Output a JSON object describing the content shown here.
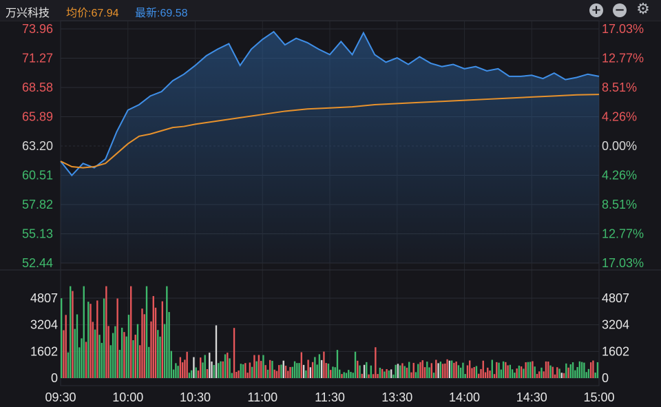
{
  "header": {
    "stock_name": "万兴科技",
    "avg_price_text": "均价:67.94",
    "last_price_text": "最新:69.58",
    "zoom_in_icon": "plus-circle-icon",
    "zoom_out_icon": "minus-circle-icon",
    "settings_icon": "gear-icon"
  },
  "colors": {
    "background": "#16161b",
    "price_line": "#3f8fe8",
    "avg_line": "#e8922c",
    "up": "#e8575a",
    "down": "#3fba6c",
    "neutral": "#d8d8d8",
    "text": "#e6e6e6"
  },
  "chart_data": [
    {
      "type": "line",
      "title": "",
      "x_ticks": [
        "09:30",
        "10:00",
        "10:30",
        "11:00",
        "11:30",
        "13:30",
        "14:00",
        "14:30",
        "15:00"
      ],
      "ylim": [
        52.44,
        73.96
      ],
      "prev_close": 63.2,
      "y_ticks": [
        "73.96",
        "71.27",
        "68.58",
        "65.89",
        "63.20",
        "60.51",
        "57.82",
        "55.13",
        "52.44"
      ],
      "pct_ticks": [
        "17.03%",
        "12.77%",
        "8.51%",
        "4.26%",
        "0.00%",
        "4.26%",
        "8.51%",
        "12.77%",
        "17.03%"
      ],
      "series": [
        {
          "name": "最新",
          "x": [
            0,
            5,
            10,
            15,
            20,
            25,
            30,
            35,
            40,
            45,
            50,
            55,
            60,
            65,
            70,
            75,
            80,
            85,
            90,
            95,
            100,
            105,
            110,
            115,
            120,
            125,
            130,
            135,
            140,
            145,
            150,
            155,
            160,
            165,
            170,
            175,
            180,
            185,
            190,
            195,
            200,
            205,
            210,
            215,
            220,
            225,
            230,
            235,
            240
          ],
          "values": [
            61.8,
            60.5,
            61.6,
            61.2,
            62.0,
            64.5,
            66.5,
            67.0,
            67.8,
            68.2,
            69.2,
            69.8,
            70.6,
            71.5,
            72.1,
            72.6,
            70.6,
            72.1,
            73.0,
            73.7,
            72.5,
            73.1,
            72.7,
            72.1,
            71.6,
            72.8,
            71.6,
            73.6,
            71.6,
            70.9,
            71.3,
            70.7,
            71.4,
            70.8,
            70.5,
            70.7,
            70.3,
            70.5,
            70.1,
            70.3,
            69.6,
            69.6,
            69.7,
            69.4,
            69.9,
            69.3,
            69.5,
            69.8,
            69.6
          ]
        },
        {
          "name": "均价",
          "x": [
            0,
            5,
            10,
            15,
            20,
            25,
            30,
            35,
            40,
            45,
            50,
            55,
            60,
            70,
            80,
            90,
            100,
            110,
            120,
            130,
            140,
            150,
            160,
            170,
            180,
            190,
            200,
            210,
            220,
            230,
            240
          ],
          "values": [
            61.8,
            61.3,
            61.2,
            61.3,
            61.6,
            62.5,
            63.4,
            64.1,
            64.3,
            64.6,
            64.9,
            65.0,
            65.2,
            65.5,
            65.8,
            66.1,
            66.4,
            66.6,
            66.7,
            66.8,
            67.0,
            67.1,
            67.2,
            67.3,
            67.4,
            67.5,
            67.6,
            67.7,
            67.8,
            67.9,
            67.94
          ]
        }
      ]
    },
    {
      "type": "bar",
      "title": "",
      "y_ticks": [
        "4807",
        "3204",
        "1602",
        "0"
      ],
      "ylim": [
        0,
        4807
      ],
      "bar_count": 240,
      "volume_seed": 4807
    }
  ]
}
